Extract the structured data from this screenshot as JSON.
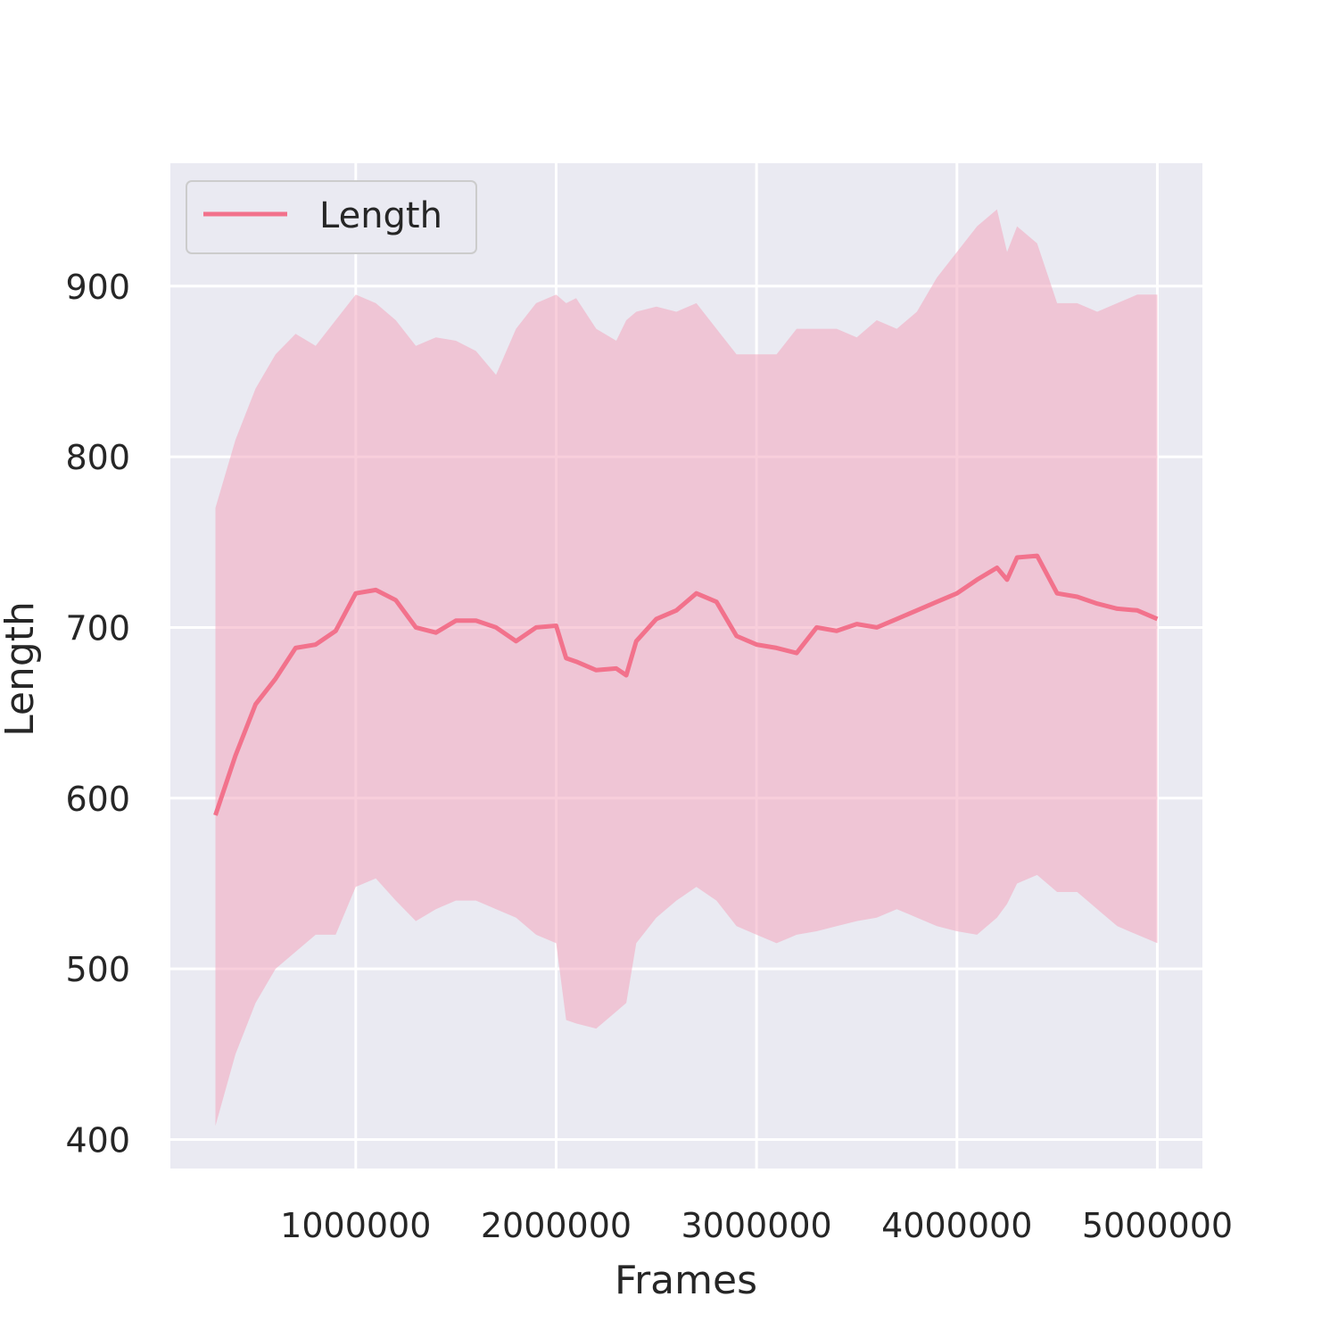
{
  "chart_data": {
    "type": "line",
    "xlabel": "Frames",
    "ylabel": "Length",
    "xlim": [
      75000,
      5225000
    ],
    "ylim": [
      383,
      972
    ],
    "xticks": [
      1000000,
      2000000,
      3000000,
      4000000,
      5000000
    ],
    "xtick_labels": [
      "1000000",
      "2000000",
      "3000000",
      "4000000",
      "5000000"
    ],
    "yticks": [
      400,
      500,
      600,
      700,
      800,
      900
    ],
    "ytick_labels": [
      "400",
      "500",
      "600",
      "700",
      "800",
      "900"
    ],
    "grid": true,
    "legend": {
      "position": "top-left",
      "entries": [
        "Length"
      ]
    },
    "colors": {
      "line": "#f2728c",
      "band": "#f2a6bd",
      "background": "#eaeaf2",
      "grid": "#ffffff"
    },
    "series": [
      {
        "name": "Length",
        "x": [
          300000,
          400000,
          500000,
          600000,
          700000,
          800000,
          900000,
          1000000,
          1100000,
          1200000,
          1300000,
          1400000,
          1500000,
          1600000,
          1700000,
          1800000,
          1900000,
          2000000,
          2050000,
          2100000,
          2200000,
          2300000,
          2350000,
          2400000,
          2500000,
          2600000,
          2700000,
          2800000,
          2900000,
          3000000,
          3100000,
          3200000,
          3300000,
          3400000,
          3500000,
          3600000,
          3700000,
          3800000,
          3900000,
          4000000,
          4100000,
          4200000,
          4250000,
          4300000,
          4400000,
          4500000,
          4600000,
          4700000,
          4800000,
          4900000,
          5000000
        ],
        "y": [
          590,
          625,
          655,
          670,
          688,
          690,
          698,
          720,
          722,
          716,
          700,
          697,
          704,
          704,
          700,
          692,
          700,
          701,
          682,
          680,
          675,
          676,
          672,
          692,
          705,
          710,
          720,
          715,
          695,
          690,
          688,
          685,
          700,
          698,
          702,
          700,
          705,
          710,
          715,
          720,
          728,
          735,
          728,
          741,
          742,
          720,
          718,
          714,
          711,
          710,
          705
        ],
        "upper": [
          770,
          810,
          840,
          860,
          872,
          865,
          880,
          895,
          890,
          880,
          865,
          870,
          868,
          862,
          848,
          875,
          890,
          895,
          890,
          893,
          875,
          868,
          880,
          885,
          888,
          885,
          890,
          875,
          860,
          860,
          860,
          875,
          875,
          875,
          870,
          880,
          875,
          885,
          905,
          920,
          935,
          945,
          920,
          935,
          925,
          890,
          890,
          885,
          890,
          895,
          895
        ],
        "lower": [
          408,
          450,
          480,
          500,
          510,
          520,
          520,
          548,
          553,
          540,
          528,
          535,
          540,
          540,
          535,
          530,
          520,
          515,
          470,
          468,
          465,
          475,
          480,
          515,
          530,
          540,
          548,
          540,
          525,
          520,
          515,
          520,
          522,
          525,
          528,
          530,
          535,
          530,
          525,
          522,
          520,
          530,
          538,
          550,
          555,
          545,
          545,
          535,
          525,
          520,
          515
        ]
      }
    ]
  }
}
